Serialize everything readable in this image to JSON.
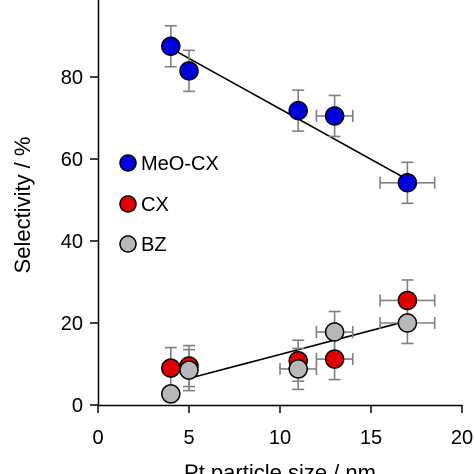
{
  "chart_data": {
    "type": "scatter",
    "xlabel": "Pt particle size / nm",
    "ylabel": "Selectivity / %",
    "xlim": [
      0,
      20
    ],
    "ylim": [
      0,
      100
    ],
    "x_ticks": [
      0,
      5,
      10,
      15,
      20
    ],
    "y_ticks": [
      0,
      20,
      40,
      60,
      80
    ],
    "x_tick_labels": [
      "0",
      "5",
      "10",
      "15",
      "20"
    ],
    "y_tick_labels": [
      "0",
      "20",
      "40",
      "60",
      "80"
    ],
    "grid": false,
    "legend": {
      "placement": "left-middle",
      "entries": [
        "MeO-CX",
        "CX",
        "BZ"
      ]
    },
    "series": [
      {
        "name": "MeO-CX",
        "color": "#0000e0",
        "points": [
          {
            "x": 4,
            "y": 87.5,
            "yerr": 5.0,
            "xerr": 0
          },
          {
            "x": 5,
            "y": 81.5,
            "yerr": 5.0,
            "xerr": 0
          },
          {
            "x": 11,
            "y": 71.8,
            "yerr": 5.0,
            "xerr": 0
          },
          {
            "x": 13,
            "y": 70.5,
            "yerr": 5.0,
            "xerr": 1.0
          },
          {
            "x": 17,
            "y": 54.2,
            "yerr": 5.0,
            "xerr": 1.5
          }
        ],
        "fit": {
          "x": [
            4,
            17
          ],
          "y": [
            87.0,
            55.0
          ]
        }
      },
      {
        "name": "CX",
        "color": "#e00000",
        "points": [
          {
            "x": 4,
            "y": 9.0,
            "yerr": 5.0,
            "xerr": 0
          },
          {
            "x": 5,
            "y": 9.5,
            "yerr": 5.0,
            "xerr": 0
          },
          {
            "x": 11,
            "y": 10.8,
            "yerr": 5.0,
            "xerr": 0
          },
          {
            "x": 13,
            "y": 11.2,
            "yerr": 5.0,
            "xerr": 1.0
          },
          {
            "x": 17,
            "y": 25.5,
            "yerr": 5.0,
            "xerr": 1.5
          }
        ]
      },
      {
        "name": "BZ",
        "color": "#b8b8b8",
        "points": [
          {
            "x": 4,
            "y": 2.7,
            "yerr": 0,
            "xerr": 0
          },
          {
            "x": 5,
            "y": 8.5,
            "yerr": 5.0,
            "xerr": 0
          },
          {
            "x": 11,
            "y": 8.8,
            "yerr": 5.0,
            "xerr": 1.0
          },
          {
            "x": 13,
            "y": 17.8,
            "yerr": 5.0,
            "xerr": 1.0
          },
          {
            "x": 17,
            "y": 20.0,
            "yerr": 5.0,
            "xerr": 1.5
          }
        ],
        "fit": {
          "x": [
            5,
            17
          ],
          "y": [
            6.5,
            20.5
          ]
        }
      }
    ]
  }
}
